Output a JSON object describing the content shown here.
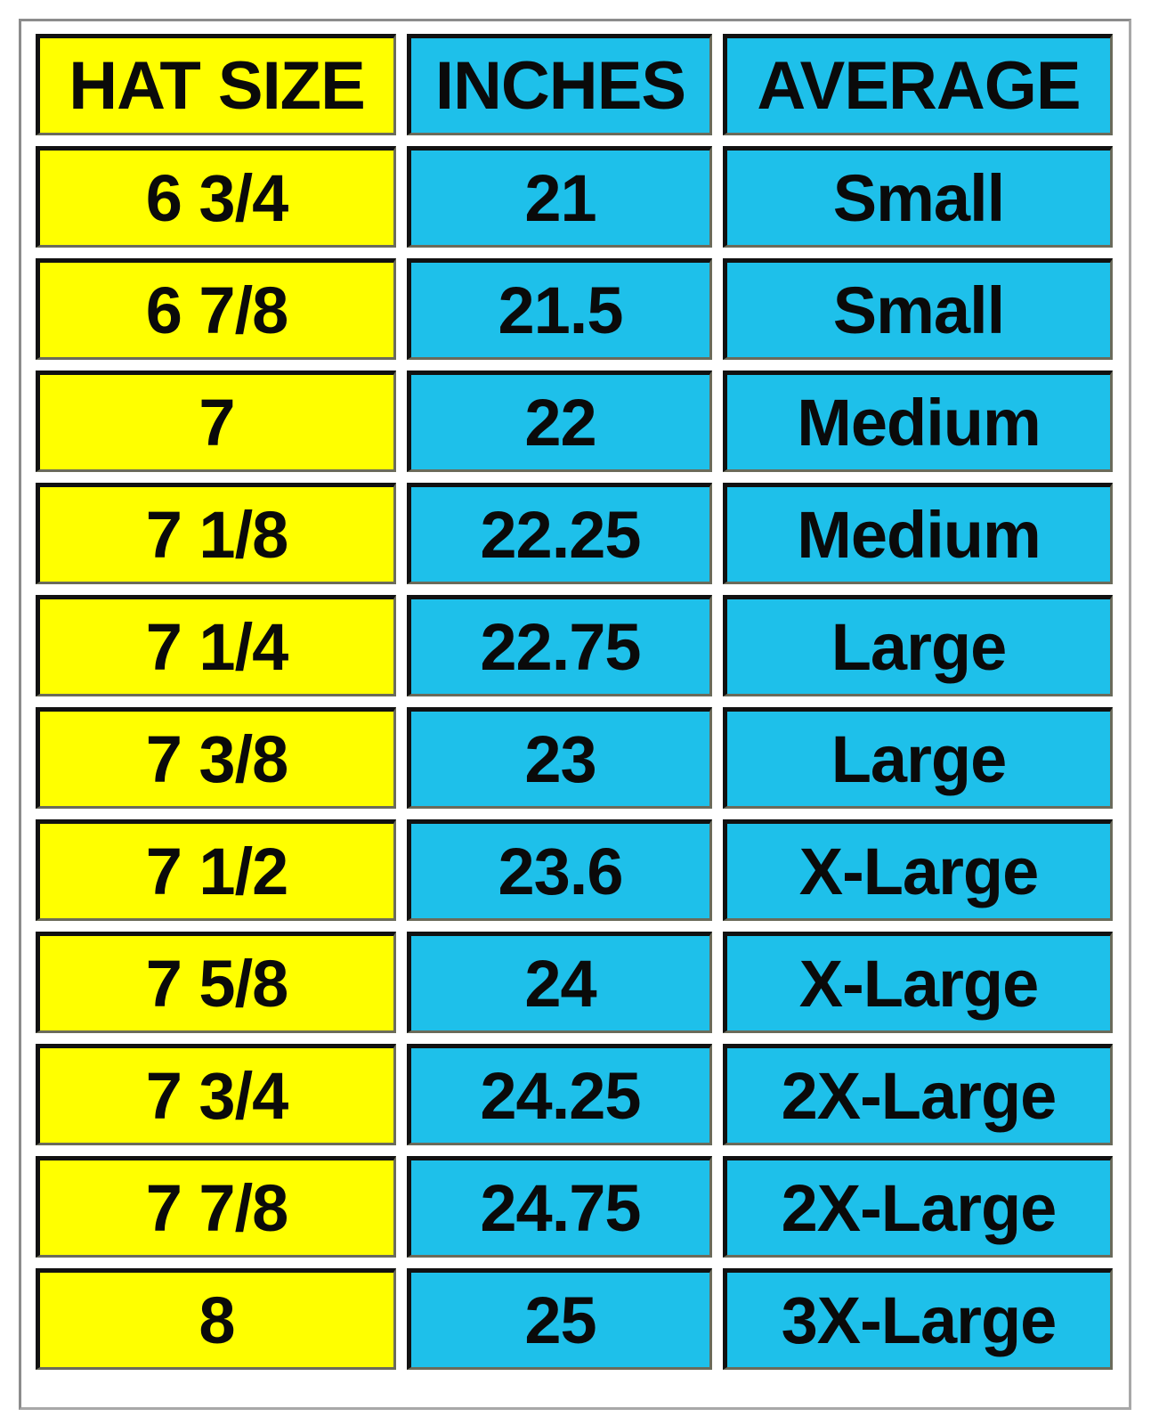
{
  "colors": {
    "hat_size_column": "#ffff00",
    "inches_column": "#1ec0ea",
    "average_column": "#1ec0ea"
  },
  "chart_data": {
    "type": "table",
    "columns": [
      "HAT SIZE",
      "INCHES",
      "AVERAGE"
    ],
    "rows": [
      [
        "6 3/4",
        "21",
        "Small"
      ],
      [
        "6 7/8",
        "21.5",
        "Small"
      ],
      [
        "7",
        "22",
        "Medium"
      ],
      [
        "7 1/8",
        "22.25",
        "Medium"
      ],
      [
        "7 1/4",
        "22.75",
        "Large"
      ],
      [
        "7 3/8",
        "23",
        "Large"
      ],
      [
        "7 1/2",
        "23.6",
        "X-Large"
      ],
      [
        "7 5/8",
        "24",
        "X-Large"
      ],
      [
        "7 3/4",
        "24.25",
        "2X-Large"
      ],
      [
        "7 7/8",
        "24.75",
        "2X-Large"
      ],
      [
        "8",
        "25",
        "3X-Large"
      ]
    ]
  }
}
